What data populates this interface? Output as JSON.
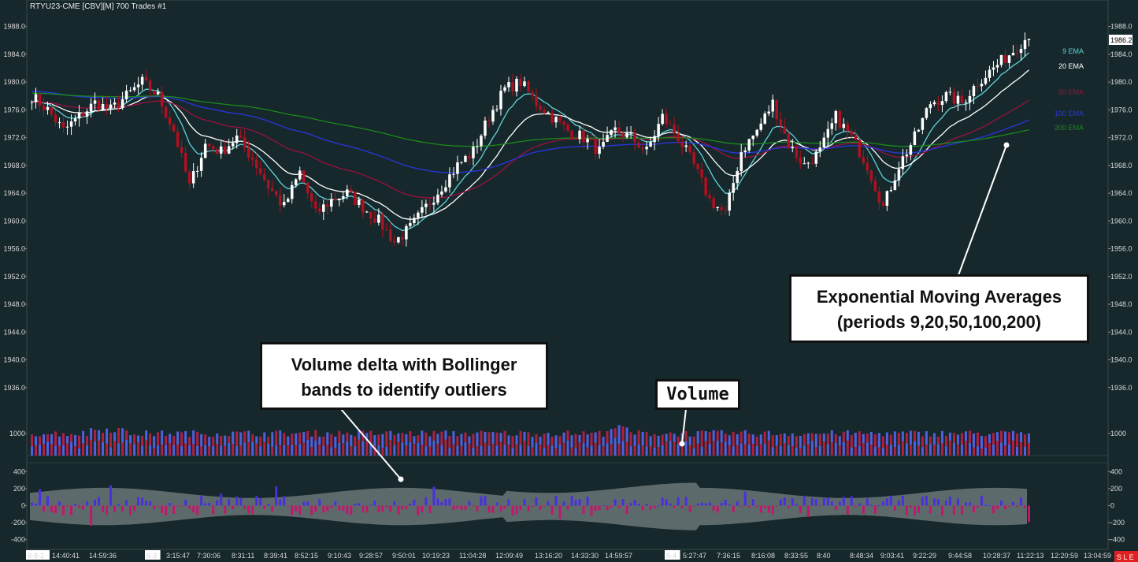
{
  "header": {
    "title": "RTYU23-CME [CBV][M]  700 Trades  #1"
  },
  "colors": {
    "background": "#16282b",
    "bull": "#ffffff",
    "bear": "#b01020",
    "ema9": "#5fd3d8",
    "ema20": "#ffffff",
    "ema50": "#9a1040",
    "ema100": "#2a35e0",
    "ema200": "#1a8a1a",
    "volume_up": "#5060e0",
    "volume_down": "#b02040",
    "delta_pos": "#4a2ee0",
    "delta_neg": "#c0186a",
    "band": "#6a7578"
  },
  "callouts": {
    "ema_title": "Exponential Moving Averages",
    "ema_periods": "(periods 9,20,50,100,200)",
    "delta": "Volume delta with Bollinger bands to identify outliers",
    "volume": "Volume"
  },
  "status_badge": "S L E",
  "chart_data": [
    {
      "type": "candlestick",
      "title": "RTYU23-CME [CBV][M]  700 Trades  #1",
      "ylim": [
        1932,
        1990
      ],
      "y_ticks": [
        "1988.0",
        "1984.0",
        "1980.0",
        "1976.0",
        "1972.0",
        "1968.0",
        "1964.0",
        "1960.0",
        "1956.0",
        "1952.0",
        "1948.0",
        "1944.0",
        "1940.0",
        "1936.0"
      ],
      "y_tick_values": [
        1988,
        1984,
        1980,
        1976,
        1972,
        1968,
        1964,
        1960,
        1956,
        1952,
        1948,
        1944,
        1940,
        1936
      ],
      "last_price": "1986.2",
      "x_ticks": [
        "8-8-2",
        "14:40:41",
        "14:59:36",
        "8-3",
        "3:15:47",
        "7:30:06",
        "8:31:11",
        "8:39:41",
        "8:52:15",
        "9:10:43",
        "9:28:57",
        "9:50:01",
        "10:19:23",
        "11:04:28",
        "12:09:49",
        "13:16:20",
        "14:33:30",
        "14:59:57",
        "8-4",
        "5:27:47",
        "7:36:15",
        "8:16:08",
        "8:33:55",
        "8:40",
        "8:48:34",
        "9:03:41",
        "9:22:29",
        "9:44:58",
        "10:28:37",
        "11:22:13",
        "12:20:59",
        "13:04:59"
      ],
      "close_path": [
        [
          0,
          1978
        ],
        [
          4,
          1976
        ],
        [
          8,
          1973
        ],
        [
          12,
          1975
        ],
        [
          16,
          1977
        ],
        [
          20,
          1976
        ],
        [
          24,
          1978
        ],
        [
          28,
          1980
        ],
        [
          32,
          1978
        ],
        [
          36,
          1973
        ],
        [
          40,
          1965
        ],
        [
          44,
          1971
        ],
        [
          48,
          1970
        ],
        [
          52,
          1972
        ],
        [
          56,
          1969
        ],
        [
          60,
          1965
        ],
        [
          64,
          1962
        ],
        [
          68,
          1967
        ],
        [
          72,
          1961
        ],
        [
          76,
          1963
        ],
        [
          80,
          1964
        ],
        [
          84,
          1962
        ],
        [
          88,
          1960
        ],
        [
          92,
          1957
        ],
        [
          96,
          1959
        ],
        [
          100,
          1962
        ],
        [
          104,
          1965
        ],
        [
          108,
          1968
        ],
        [
          112,
          1970
        ],
        [
          116,
          1975
        ],
        [
          120,
          1979
        ],
        [
          124,
          1980
        ],
        [
          128,
          1977
        ],
        [
          132,
          1975
        ],
        [
          136,
          1973
        ],
        [
          140,
          1972
        ],
        [
          144,
          1970
        ],
        [
          148,
          1973
        ],
        [
          152,
          1972
        ],
        [
          156,
          1970
        ],
        [
          160,
          1975
        ],
        [
          164,
          1972
        ],
        [
          168,
          1968
        ],
        [
          172,
          1963
        ],
        [
          176,
          1961
        ],
        [
          180,
          1970
        ],
        [
          184,
          1973
        ],
        [
          188,
          1977
        ],
        [
          192,
          1971
        ],
        [
          196,
          1968
        ],
        [
          200,
          1970
        ],
        [
          204,
          1975
        ],
        [
          208,
          1972
        ],
        [
          212,
          1968
        ],
        [
          216,
          1962
        ],
        [
          220,
          1968
        ],
        [
          224,
          1972
        ],
        [
          228,
          1977
        ],
        [
          232,
          1978
        ],
        [
          236,
          1977
        ],
        [
          240,
          1980
        ],
        [
          244,
          1982
        ],
        [
          248,
          1984
        ],
        [
          252,
          1986.2
        ]
      ],
      "legend": [
        "9 EMA",
        "20 EMA",
        "50 EMA",
        "100 EMA",
        "200 EMA"
      ]
    },
    {
      "type": "bar",
      "title": "Volume",
      "y_ticks": [
        "1000"
      ],
      "y_tick_values": [
        1000
      ],
      "ylim": [
        0,
        1000
      ]
    },
    {
      "type": "bar",
      "title": "Volume delta",
      "y_ticks": [
        "400",
        "200",
        "0",
        "-200",
        "-400"
      ],
      "y_tick_values": [
        400,
        200,
        0,
        -200,
        -400
      ],
      "ylim": [
        -450,
        450
      ]
    }
  ]
}
